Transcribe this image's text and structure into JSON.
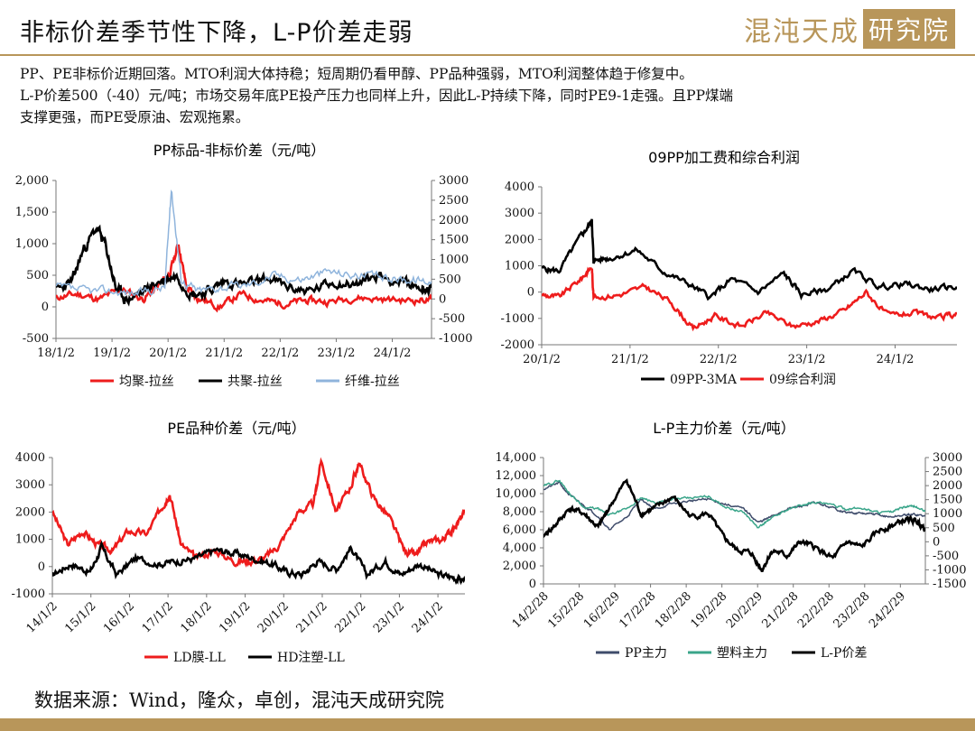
{
  "header": {
    "title": "非标价差季节性下降，L-P价差走弱",
    "logo_text": "混沌天成",
    "logo_box_text": "研究院",
    "accent_color": "#b8965a"
  },
  "summary": {
    "line1": "PP、PE非标价近期回落。MTO利润大体持稳；短周期仍看甲醇、PP品种强弱，MTO利润整体趋于修复中。",
    "line2": "L-P价差500（-40）元/吨；市场交易年底PE投产压力也同样上升，因此L-P持续下降，同时PE9-1走强。且PP煤端",
    "line3": "支撑更强，而PE受原油、宏观拖累。"
  },
  "source": "数据来源：Wind，隆众，卓创，混沌天成研究院",
  "chart_data": [
    {
      "type": "line",
      "title": "PP标品-非标价差（元/吨）",
      "x_ticks": [
        "18/1/2",
        "19/1/2",
        "20/1/2",
        "21/1/2",
        "22/1/2",
        "23/1/2",
        "24/1/2"
      ],
      "x_range": [
        2018.0,
        2024.9
      ],
      "y_left_ticks": [
        "2,000",
        "1,500",
        "1,000",
        "500",
        "0",
        "-500"
      ],
      "ylim_left": [
        -500,
        2000
      ],
      "y_right_ticks": [
        "3000",
        "2500",
        "2000",
        "1500",
        "1000",
        "500",
        "0",
        "-500",
        "-1000"
      ],
      "ylim_right": [
        -1000,
        3000
      ],
      "series": [
        {
          "name": "均聚-拉丝",
          "color": "#ee1c1c",
          "axis": "left",
          "seed": 11,
          "x": [
            2018.0,
            2018.4,
            2018.8,
            2019.2,
            2019.6,
            2019.9,
            2020.1,
            2020.25,
            2020.4,
            2020.6,
            2021.0,
            2021.4,
            2021.8,
            2022.2,
            2022.6,
            2023.0,
            2023.5,
            2024.0,
            2024.5,
            2024.9
          ],
          "y": [
            150,
            200,
            120,
            280,
            120,
            350,
            550,
            1000,
            300,
            150,
            0,
            200,
            100,
            50,
            100,
            80,
            150,
            120,
            100,
            120
          ],
          "noise": 90
        },
        {
          "name": "共聚-拉丝",
          "color": "#000000",
          "axis": "left",
          "seed": 23,
          "x": [
            2018.0,
            2018.3,
            2018.5,
            2018.75,
            2018.9,
            2019.1,
            2019.3,
            2019.6,
            2019.9,
            2020.2,
            2020.5,
            2020.8,
            2021.1,
            2021.5,
            2021.9,
            2022.3,
            2022.7,
            2023.1,
            2023.5,
            2023.9,
            2024.3,
            2024.7,
            2024.9
          ],
          "y": [
            250,
            400,
            900,
            1250,
            1000,
            300,
            100,
            250,
            400,
            500,
            200,
            250,
            400,
            350,
            450,
            300,
            250,
            400,
            350,
            500,
            400,
            300,
            300
          ],
          "noise": 130
        },
        {
          "name": "纤维-拉丝",
          "color": "#8fb4dc",
          "axis": "right",
          "seed": 37,
          "x": [
            2018.0,
            2018.5,
            2019.0,
            2019.5,
            2020.0,
            2020.12,
            2020.3,
            2020.6,
            2021.0,
            2021.5,
            2022.0,
            2022.5,
            2023.0,
            2023.5,
            2024.0,
            2024.5,
            2024.9
          ],
          "y": [
            300,
            200,
            200,
            150,
            300,
            2800,
            500,
            200,
            300,
            350,
            600,
            500,
            700,
            600,
            550,
            500,
            450
          ],
          "noise": 180
        }
      ]
    },
    {
      "type": "line",
      "title": "09PP加工费和综合利润",
      "x_ticks": [
        "20/1/2",
        "21/1/2",
        "22/1/2",
        "23/1/2",
        "24/1/2"
      ],
      "x_range": [
        2020.0,
        2024.8
      ],
      "y_left_ticks": [
        "4000",
        "3000",
        "2000",
        "1000",
        "0",
        "-1000",
        "-2000"
      ],
      "ylim": [
        -2000,
        4000
      ],
      "series": [
        {
          "name": "09PP-3MA",
          "color": "#000000",
          "seed": 5,
          "x": [
            2020.0,
            2020.2,
            2020.45,
            2020.58,
            2020.6,
            2020.8,
            2021.1,
            2021.4,
            2021.7,
            2021.95,
            2022.2,
            2022.5,
            2022.8,
            2023.0,
            2023.3,
            2023.6,
            2023.9,
            2024.2,
            2024.5,
            2024.8
          ],
          "y": [
            900,
            800,
            2100,
            2700,
            1200,
            1300,
            1600,
            800,
            300,
            -200,
            500,
            0,
            700,
            -100,
            100,
            800,
            200,
            300,
            100,
            200
          ],
          "noise": 180
        },
        {
          "name": "09综合利润",
          "color": "#ee1c1c",
          "seed": 9,
          "x": [
            2020.0,
            2020.2,
            2020.45,
            2020.58,
            2020.6,
            2020.9,
            2021.2,
            2021.5,
            2021.75,
            2022.0,
            2022.3,
            2022.6,
            2022.9,
            2023.2,
            2023.5,
            2023.75,
            2024.0,
            2024.3,
            2024.6,
            2024.8
          ],
          "y": [
            -100,
            -200,
            500,
            950,
            -200,
            -100,
            200,
            -400,
            -1400,
            -900,
            -1300,
            -800,
            -1300,
            -1100,
            -700,
            0,
            -900,
            -800,
            -1000,
            -800
          ],
          "noise": 170
        }
      ]
    },
    {
      "type": "line",
      "title": "PE品种价差（元/吨）",
      "x_ticks": [
        "14/1/2",
        "15/1/2",
        "16/1/2",
        "17/1/2",
        "18/1/2",
        "19/1/2",
        "20/1/2",
        "21/1/2",
        "22/1/2",
        "23/1/2",
        "24/1/2"
      ],
      "x_range": [
        2014.0,
        2024.9
      ],
      "y_left_ticks": [
        "4000",
        "3000",
        "2000",
        "1000",
        "0",
        "-1000"
      ],
      "ylim": [
        -1000,
        4000
      ],
      "series": [
        {
          "name": "LD膜-LL",
          "color": "#ee1c1c",
          "seed": 3,
          "x": [
            2014.0,
            2014.4,
            2014.8,
            2015.2,
            2015.6,
            2016.0,
            2016.5,
            2016.9,
            2017.1,
            2017.4,
            2017.8,
            2018.3,
            2018.8,
            2019.2,
            2019.6,
            2020.0,
            2020.5,
            2020.9,
            2021.1,
            2021.5,
            2021.9,
            2022.1,
            2022.5,
            2022.9,
            2023.3,
            2023.6,
            2023.9,
            2024.3,
            2024.6,
            2024.9
          ],
          "y": [
            2000,
            800,
            1300,
            800,
            600,
            1300,
            1200,
            2200,
            2700,
            800,
            300,
            600,
            200,
            200,
            300,
            800,
            2000,
            2300,
            3900,
            2000,
            3000,
            3800,
            2500,
            1800,
            600,
            400,
            900,
            1000,
            1400,
            2000
          ],
          "noise": 200
        },
        {
          "name": "HD注塑-LL",
          "color": "#000000",
          "seed": 17,
          "x": [
            2014.0,
            2014.5,
            2015.0,
            2015.3,
            2015.7,
            2016.2,
            2016.8,
            2017.3,
            2017.8,
            2018.3,
            2018.8,
            2019.3,
            2019.8,
            2020.2,
            2020.6,
            2021.0,
            2021.5,
            2021.9,
            2022.3,
            2022.8,
            2023.2,
            2023.7,
            2024.2,
            2024.6,
            2024.9
          ],
          "y": [
            -300,
            100,
            -200,
            700,
            -300,
            300,
            100,
            200,
            300,
            600,
            500,
            300,
            100,
            -200,
            -300,
            200,
            -100,
            700,
            -300,
            200,
            -300,
            100,
            -300,
            -400,
            -500
          ],
          "noise": 200
        }
      ]
    },
    {
      "type": "line",
      "title": "L-P主力价差（元/吨）",
      "x_ticks": [
        "14/2/28",
        "15/2/28",
        "16/2/29",
        "17/2/28",
        "18/2/28",
        "19/2/28",
        "20/2/29",
        "21/2/28",
        "22/2/28",
        "23/2/28",
        "24/2/29"
      ],
      "x_range": [
        2014.16,
        2024.9
      ],
      "y_left_ticks": [
        "14,000",
        "12,000",
        "10,000",
        "8,000",
        "6,000",
        "4,000",
        "2,000",
        "0"
      ],
      "ylim_left": [
        0,
        14000
      ],
      "y_right_ticks": [
        "3000",
        "2500",
        "2000",
        "1500",
        "1000",
        "500",
        "0",
        "-500",
        "-1000",
        "-1500"
      ],
      "ylim_right": [
        -1500,
        3000
      ],
      "series": [
        {
          "name": "PP主力",
          "color": "#3f4c6b",
          "axis": "left",
          "seed": 21,
          "x": [
            2014.16,
            2014.6,
            2014.9,
            2015.3,
            2015.7,
            2016.0,
            2016.5,
            2016.9,
            2017.3,
            2017.8,
            2018.3,
            2018.8,
            2019.3,
            2019.8,
            2020.2,
            2020.5,
            2021.0,
            2021.4,
            2021.8,
            2022.3,
            2022.7,
            2023.1,
            2023.5,
            2023.9,
            2024.3,
            2024.6,
            2024.9
          ],
          "y": [
            10500,
            11200,
            9800,
            8700,
            7500,
            6000,
            7400,
            9400,
            8300,
            8900,
            9200,
            9400,
            8800,
            8300,
            6800,
            7300,
            8300,
            8600,
            9000,
            8400,
            7900,
            7800,
            7700,
            7400,
            7600,
            7700,
            7500
          ],
          "noise": 200
        },
        {
          "name": "塑料主力",
          "color": "#3aa58a",
          "axis": "left",
          "seed": 29,
          "x": [
            2014.16,
            2014.6,
            2014.9,
            2015.3,
            2015.7,
            2016.0,
            2016.5,
            2016.9,
            2017.3,
            2017.8,
            2018.3,
            2018.8,
            2019.3,
            2019.8,
            2020.2,
            2020.5,
            2021.0,
            2021.4,
            2021.8,
            2022.3,
            2022.7,
            2023.1,
            2023.5,
            2023.9,
            2024.3,
            2024.6,
            2024.9
          ],
          "y": [
            10800,
            11500,
            10000,
            8500,
            8300,
            7600,
            8300,
            9500,
            9000,
            9400,
            9500,
            9700,
            8500,
            7900,
            6200,
            7100,
            8200,
            8700,
            9100,
            8700,
            8300,
            8400,
            8000,
            7900,
            8500,
            8600,
            8000
          ],
          "noise": 200
        },
        {
          "name": "L-P价差",
          "color": "#000000",
          "axis": "right",
          "seed": 41,
          "x": [
            2014.16,
            2014.5,
            2014.9,
            2015.3,
            2015.7,
            2016.0,
            2016.5,
            2016.9,
            2017.3,
            2017.8,
            2018.3,
            2018.8,
            2019.2,
            2019.6,
            2020.0,
            2020.3,
            2020.6,
            2021.0,
            2021.4,
            2021.8,
            2022.3,
            2022.7,
            2023.1,
            2023.6,
            2024.0,
            2024.4,
            2024.7,
            2024.9
          ],
          "y": [
            200,
            600,
            1200,
            1000,
            500,
            1200,
            2200,
            1000,
            1200,
            1600,
            900,
            1000,
            200,
            -300,
            -400,
            -1000,
            -300,
            -500,
            0,
            -200,
            -600,
            0,
            -200,
            400,
            600,
            800,
            700,
            500
          ],
          "noise": 150
        }
      ]
    }
  ]
}
